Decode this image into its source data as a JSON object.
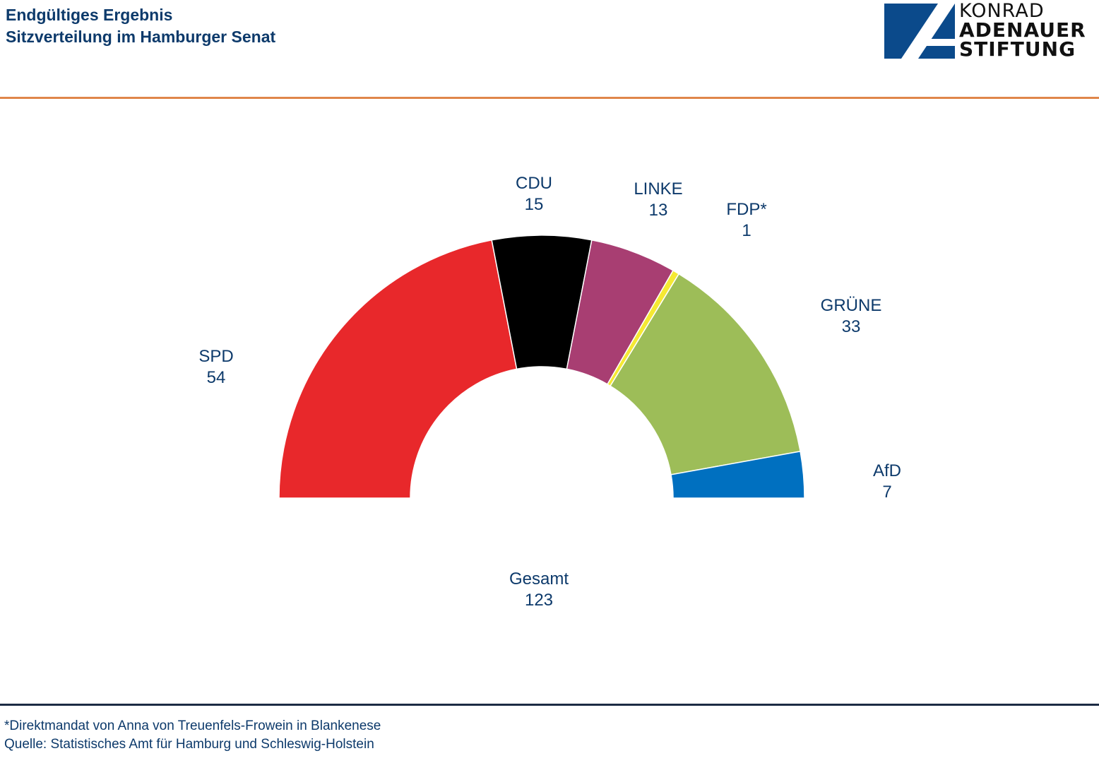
{
  "header": {
    "title_line1": "Endgültiges Ergebnis",
    "title_line2": "Sitzverteilung im Hamburger Senat"
  },
  "logo": {
    "line1": "KONRAD",
    "line2": "ADENAUER",
    "line3": "STIFTUNG",
    "color": "#0b4a8b"
  },
  "chart_data": {
    "type": "pie",
    "subtype": "half-donut (parliament seats)",
    "title": "Sitzverteilung im Hamburger Senat",
    "series": [
      {
        "name": "SPD",
        "value": 54,
        "color": "#e8282b"
      },
      {
        "name": "CDU",
        "value": 15,
        "color": "#000000"
      },
      {
        "name": "LINKE",
        "value": 13,
        "color": "#a83e72"
      },
      {
        "name": "FDP*",
        "value": 1,
        "color": "#f5e933"
      },
      {
        "name": "GRÜNE",
        "value": 33,
        "color": "#9dbd58"
      },
      {
        "name": "AfD",
        "value": 7,
        "color": "#0070c0"
      }
    ],
    "total_label": "Gesamt",
    "total": 123
  },
  "footer": {
    "note": "*Direktmandat von Anna von Treuenfels-Frowein in Blankenese",
    "source": "Quelle: Statistisches Amt für Hamburg und Schleswig-Holstein"
  }
}
